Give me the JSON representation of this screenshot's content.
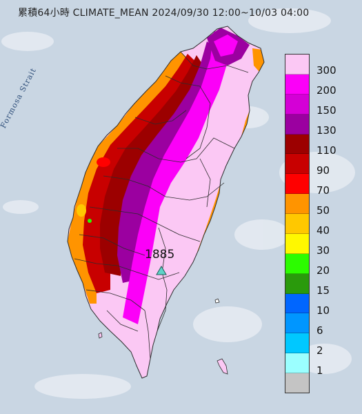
{
  "title": "累積64小時 CLIMATE_MEAN 2024/09/30 12:00~10/03 04:00",
  "strait_label": "Formosa Strait",
  "station": {
    "value": "1885",
    "icon": "triangle-icon",
    "color": "#5fd3c8"
  },
  "legend": [
    {
      "label": "300",
      "color": "#fbc8f4"
    },
    {
      "label": "200",
      "color": "#fb00f8"
    },
    {
      "label": "150",
      "color": "#d400d6"
    },
    {
      "label": "130",
      "color": "#9b00a0"
    },
    {
      "label": "110",
      "color": "#9c0000"
    },
    {
      "label": "90",
      "color": "#c80000"
    },
    {
      "label": "70",
      "color": "#ff0000"
    },
    {
      "label": "50",
      "color": "#ff9400"
    },
    {
      "label": "40",
      "color": "#ffc800"
    },
    {
      "label": "30",
      "color": "#fff800"
    },
    {
      "label": "20",
      "color": "#2cfc00"
    },
    {
      "label": "15",
      "color": "#2a9a0c"
    },
    {
      "label": "10",
      "color": "#0066ff"
    },
    {
      "label": "6",
      "color": "#0096ff"
    },
    {
      "label": "2",
      "color": "#00c8ff"
    },
    {
      "label": "1",
      "color": "#9bffff"
    },
    {
      "label": "",
      "color": "#c4c4c4"
    }
  ],
  "colors": {
    "sea": "#c9d6e3",
    "cloud": "#e8edf3",
    "border": "#2b2b2b"
  }
}
